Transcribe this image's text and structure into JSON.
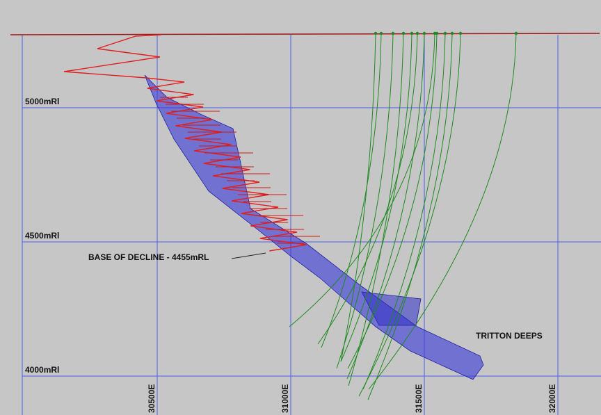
{
  "grid": {
    "elevations": [
      "5000mRl",
      "4500mRl",
      "4000mRl"
    ],
    "eastings": [
      "30500E",
      "31000E",
      "31500E",
      "32000E"
    ]
  },
  "annotations": {
    "decline": "BASE OF DECLINE - 4455mRL",
    "orebody": "TRITTON DEEPS"
  }
}
